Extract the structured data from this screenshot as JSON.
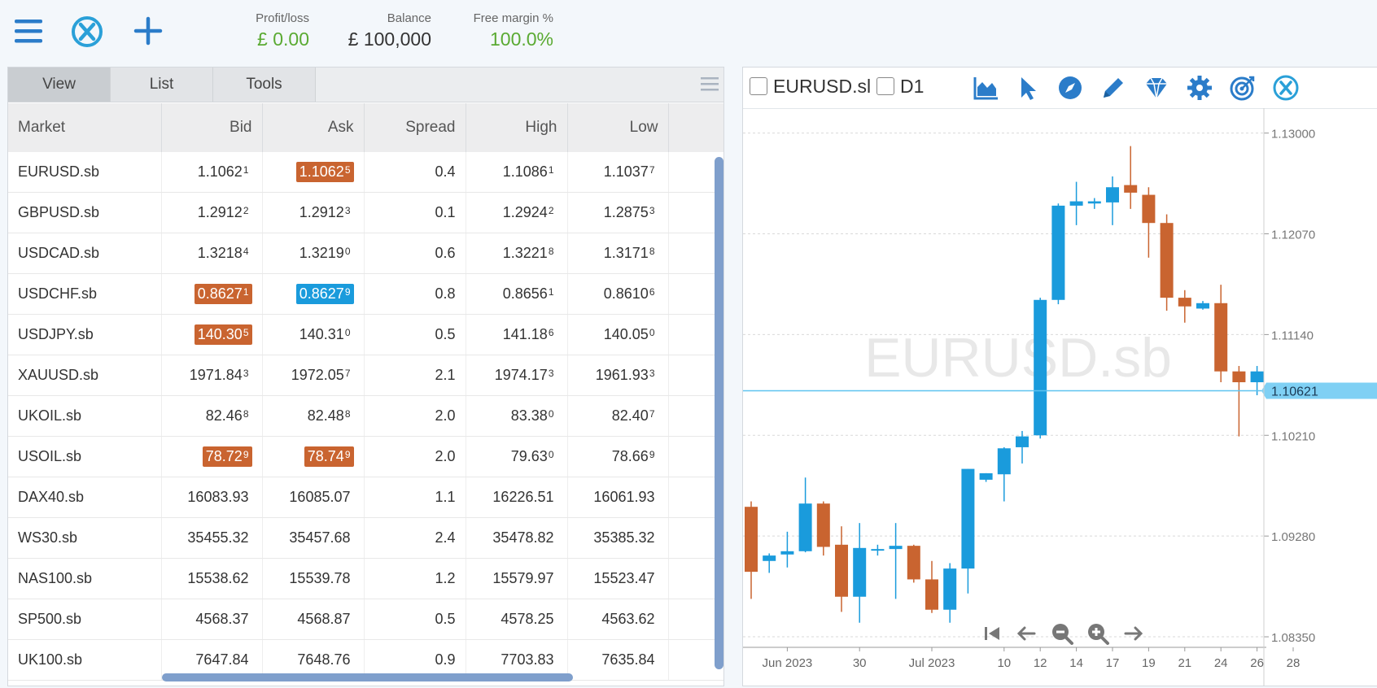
{
  "header": {
    "profit_loss": {
      "label": "Profit/loss",
      "value": "£ 0.00"
    },
    "balance": {
      "label": "Balance",
      "value": "£ 100,000"
    },
    "free_margin": {
      "label": "Free margin %",
      "value": "100.0%"
    },
    "colors": {
      "positive": "#5aaa32",
      "icon": "#2b7cc9",
      "neutral": "#333333"
    }
  },
  "tabs": [
    "View",
    "List",
    "Tools"
  ],
  "active_tab": "View",
  "table": {
    "columns": [
      "Market",
      "Bid",
      "Ask",
      "Spread",
      "High",
      "Low"
    ],
    "rows": [
      {
        "market": "EURUSD.sb",
        "bid": {
          "main": "1.1062",
          "pip": "1"
        },
        "ask": {
          "main": "1.1062",
          "pip": "5",
          "hl": "up"
        },
        "spread": "0.4",
        "high": {
          "main": "1.1086",
          "pip": "1"
        },
        "low": {
          "main": "1.1037",
          "pip": "7"
        }
      },
      {
        "market": "GBPUSD.sb",
        "bid": {
          "main": "1.2912",
          "pip": "2"
        },
        "ask": {
          "main": "1.2912",
          "pip": "3"
        },
        "spread": "0.1",
        "high": {
          "main": "1.2924",
          "pip": "2"
        },
        "low": {
          "main": "1.2875",
          "pip": "3"
        }
      },
      {
        "market": "USDCAD.sb",
        "bid": {
          "main": "1.3218",
          "pip": "4"
        },
        "ask": {
          "main": "1.3219",
          "pip": "0"
        },
        "spread": "0.6",
        "high": {
          "main": "1.3221",
          "pip": "8"
        },
        "low": {
          "main": "1.3171",
          "pip": "8"
        }
      },
      {
        "market": "USDCHF.sb",
        "bid": {
          "main": "0.8627",
          "pip": "1",
          "hl": "up"
        },
        "ask": {
          "main": "0.8627",
          "pip": "9",
          "hl": "dn"
        },
        "spread": "0.8",
        "high": {
          "main": "0.8656",
          "pip": "1"
        },
        "low": {
          "main": "0.8610",
          "pip": "6"
        }
      },
      {
        "market": "USDJPY.sb",
        "bid": {
          "main": "140.30",
          "pip": "5",
          "hl": "up"
        },
        "ask": {
          "main": "140.31",
          "pip": "0"
        },
        "spread": "0.5",
        "high": {
          "main": "141.18",
          "pip": "6"
        },
        "low": {
          "main": "140.05",
          "pip": "0"
        }
      },
      {
        "market": "XAUUSD.sb",
        "bid": {
          "main": "1971.84",
          "pip": "3"
        },
        "ask": {
          "main": "1972.05",
          "pip": "7"
        },
        "spread": "2.1",
        "high": {
          "main": "1974.17",
          "pip": "3"
        },
        "low": {
          "main": "1961.93",
          "pip": "3"
        }
      },
      {
        "market": "UKOIL.sb",
        "bid": {
          "main": "82.46",
          "pip": "8"
        },
        "ask": {
          "main": "82.48",
          "pip": "8"
        },
        "spread": "2.0",
        "high": {
          "main": "83.38",
          "pip": "0"
        },
        "low": {
          "main": "82.40",
          "pip": "7"
        }
      },
      {
        "market": "USOIL.sb",
        "bid": {
          "main": "78.72",
          "pip": "9",
          "hl": "up"
        },
        "ask": {
          "main": "78.74",
          "pip": "9",
          "hl": "up"
        },
        "spread": "2.0",
        "high": {
          "main": "79.63",
          "pip": "0"
        },
        "low": {
          "main": "78.66",
          "pip": "9"
        }
      },
      {
        "market": "DAX40.sb",
        "bid": {
          "main": "16083.93",
          "pip": ""
        },
        "ask": {
          "main": "16085.07",
          "pip": ""
        },
        "spread": "1.1",
        "high": {
          "main": "16226.51",
          "pip": ""
        },
        "low": {
          "main": "16061.93",
          "pip": ""
        }
      },
      {
        "market": "WS30.sb",
        "bid": {
          "main": "35455.32",
          "pip": ""
        },
        "ask": {
          "main": "35457.68",
          "pip": ""
        },
        "spread": "2.4",
        "high": {
          "main": "35478.82",
          "pip": ""
        },
        "low": {
          "main": "35385.32",
          "pip": ""
        }
      },
      {
        "market": "NAS100.sb",
        "bid": {
          "main": "15538.62",
          "pip": ""
        },
        "ask": {
          "main": "15539.78",
          "pip": ""
        },
        "spread": "1.2",
        "high": {
          "main": "15579.97",
          "pip": ""
        },
        "low": {
          "main": "15523.47",
          "pip": ""
        }
      },
      {
        "market": "SP500.sb",
        "bid": {
          "main": "4568.37",
          "pip": ""
        },
        "ask": {
          "main": "4568.87",
          "pip": ""
        },
        "spread": "0.5",
        "high": {
          "main": "4578.25",
          "pip": ""
        },
        "low": {
          "main": "4563.62",
          "pip": ""
        }
      },
      {
        "market": "UK100.sb",
        "bid": {
          "main": "7647.84",
          "pip": ""
        },
        "ask": {
          "main": "7648.76",
          "pip": ""
        },
        "spread": "0.9",
        "high": {
          "main": "7703.83",
          "pip": ""
        },
        "low": {
          "main": "7635.84",
          "pip": ""
        }
      }
    ],
    "highlight_colors": {
      "up": "#c96430",
      "dn": "#1a9bdc"
    }
  },
  "chart_toolbar": {
    "symbol_label": "EURUSD.sl",
    "timeframe_label": "D1",
    "tools": [
      "chart-type-icon",
      "cursor-icon",
      "compass-icon",
      "pencil-icon",
      "diamond-icon",
      "gear-icon",
      "target-icon",
      "brand-icon"
    ]
  },
  "chart_data": {
    "type": "candlestick",
    "watermark": "EURUSD.sb",
    "current_price": "1.10621",
    "ylim": [
      1.0805,
      1.1323
    ],
    "yticks": [
      "1.13000",
      "1.12070",
      "1.11140",
      "1.10210",
      "1.09280",
      "1.08350"
    ],
    "xticks": [
      {
        "label": "Jun 2023",
        "i": 2
      },
      {
        "label": "30",
        "i": 6
      },
      {
        "label": "Jul 2023",
        "i": 10
      },
      {
        "label": "10",
        "i": 14
      },
      {
        "label": "12",
        "i": 16
      },
      {
        "label": "14",
        "i": 18
      },
      {
        "label": "17",
        "i": 20
      },
      {
        "label": "19",
        "i": 22
      },
      {
        "label": "21",
        "i": 24
      },
      {
        "label": "24",
        "i": 26
      },
      {
        "label": "26",
        "i": 28
      },
      {
        "label": "28",
        "i": 30
      }
    ],
    "up_color": "#1a9bdc",
    "down_color": "#c96430",
    "candles": [
      {
        "o": 1.0955,
        "h": 1.096,
        "l": 1.087,
        "c": 1.0895
      },
      {
        "o": 1.0905,
        "h": 1.0912,
        "l": 1.0894,
        "c": 1.091
      },
      {
        "o": 1.0911,
        "h": 1.0932,
        "l": 1.0899,
        "c": 1.0914
      },
      {
        "o": 1.0914,
        "h": 1.0982,
        "l": 1.0913,
        "c": 1.0958
      },
      {
        "o": 1.0958,
        "h": 1.096,
        "l": 1.091,
        "c": 1.0918
      },
      {
        "o": 1.092,
        "h": 1.0937,
        "l": 1.0858,
        "c": 1.0872
      },
      {
        "o": 1.0872,
        "h": 1.094,
        "l": 1.0848,
        "c": 1.0917
      },
      {
        "o": 1.0915,
        "h": 1.092,
        "l": 1.091,
        "c": 1.0916
      },
      {
        "o": 1.0916,
        "h": 1.094,
        "l": 1.087,
        "c": 1.0919
      },
      {
        "o": 1.0919,
        "h": 1.092,
        "l": 1.0885,
        "c": 1.0888
      },
      {
        "o": 1.0888,
        "h": 1.0905,
        "l": 1.0857,
        "c": 1.086
      },
      {
        "o": 1.086,
        "h": 1.0903,
        "l": 1.0848,
        "c": 1.0898
      },
      {
        "o": 1.0898,
        "h": 1.099,
        "l": 1.0875,
        "c": 1.099
      },
      {
        "o": 1.098,
        "h": 1.0986,
        "l": 1.0978,
        "c": 1.0986
      },
      {
        "o": 1.0985,
        "h": 1.101,
        "l": 1.096,
        "c": 1.1009
      },
      {
        "o": 1.101,
        "h": 1.1025,
        "l": 1.0995,
        "c": 1.102
      },
      {
        "o": 1.1021,
        "h": 1.1148,
        "l": 1.1018,
        "c": 1.1146
      },
      {
        "o": 1.1146,
        "h": 1.1235,
        "l": 1.1142,
        "c": 1.1233
      },
      {
        "o": 1.1233,
        "h": 1.1255,
        "l": 1.1215,
        "c": 1.1237
      },
      {
        "o": 1.1235,
        "h": 1.124,
        "l": 1.123,
        "c": 1.1237
      },
      {
        "o": 1.1236,
        "h": 1.126,
        "l": 1.1215,
        "c": 1.125
      },
      {
        "o": 1.1252,
        "h": 1.1288,
        "l": 1.123,
        "c": 1.1245
      },
      {
        "o": 1.1243,
        "h": 1.125,
        "l": 1.1185,
        "c": 1.1217
      },
      {
        "o": 1.1217,
        "h": 1.1225,
        "l": 1.1136,
        "c": 1.1148
      },
      {
        "o": 1.1148,
        "h": 1.1155,
        "l": 1.1125,
        "c": 1.114
      },
      {
        "o": 1.1138,
        "h": 1.1145,
        "l": 1.1137,
        "c": 1.1143
      },
      {
        "o": 1.1143,
        "h": 1.116,
        "l": 1.107,
        "c": 1.108
      },
      {
        "o": 1.108,
        "h": 1.1085,
        "l": 1.102,
        "c": 1.107
      },
      {
        "o": 1.107,
        "h": 1.1085,
        "l": 1.1058,
        "c": 1.108
      }
    ]
  }
}
